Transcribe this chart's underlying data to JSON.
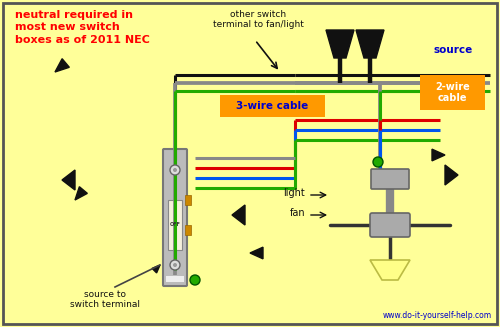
{
  "bg_color": "#FFFF99",
  "title_text": "neutral required in\nmost new switch\nboxes as of 2011 NEC",
  "title_color": "#FF0000",
  "subtitle": "www.do-it-yourself-help.com",
  "subtitle_color": "#0000CC",
  "source_label": "source",
  "source_label_color": "#0000CC",
  "label_3wire": "3-wire cable",
  "label_2wire": "2-wire\ncable",
  "label_other_switch": "other switch\nterminal to fan/light",
  "label_source_to_switch": "source to\nswitch terminal",
  "label_light": "light",
  "label_fan": "fan",
  "box_color": "#FF9900",
  "wire_black": "#111111",
  "wire_white": "#CCCCCC",
  "wire_red": "#DD0000",
  "wire_green": "#22AA00",
  "wire_blue": "#0055EE",
  "wire_gray": "#888888"
}
